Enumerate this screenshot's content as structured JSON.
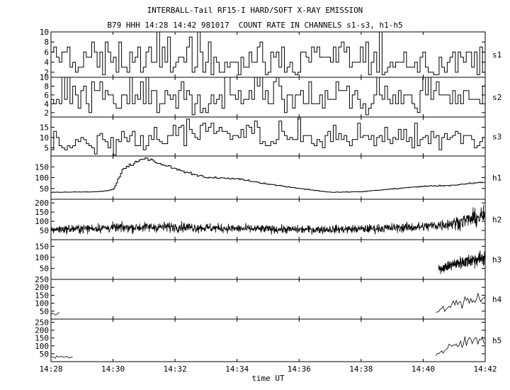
{
  "chart_data": {
    "type": "line",
    "title": "INTERBALL-Tail RF15-I HARD/SOFT X-RAY EMISSION",
    "subtitle": "B79 HHH 14:28 14:42 981017  COUNT RATE IN CHANNELS s1-s3, h1-h5",
    "xlabel": "time UT",
    "x_ticks": [
      "14:28",
      "14:30",
      "14:32",
      "14:34",
      "14:36",
      "14:38",
      "14:40",
      "14:42"
    ],
    "xlim": [
      "14:28",
      "14:42"
    ],
    "grid": false,
    "panels": [
      {
        "name": "s1",
        "ylim": [
          1,
          10
        ],
        "y_ticks": [
          "2",
          "4",
          "6",
          "8",
          "10"
        ],
        "profile": {
          "time": [
            "14:28",
            "14:32",
            "14:36",
            "14:40",
            "14:42"
          ],
          "level": [
            4,
            4.6,
            4.4,
            4.5,
            4.6
          ]
        }
      },
      {
        "name": "s2",
        "ylim": [
          1,
          10
        ],
        "y_ticks": [
          "2",
          "4",
          "6",
          "8",
          "10"
        ],
        "profile": {
          "time": [
            "14:28",
            "14:32",
            "14:36",
            "14:40",
            "14:42"
          ],
          "level": [
            5.5,
            6,
            5.8,
            5.8,
            6
          ]
        }
      },
      {
        "name": "s3",
        "ylim": [
          1,
          20
        ],
        "y_ticks": [
          "5",
          "10",
          "15"
        ],
        "profile": {
          "time": [
            "14:28",
            "14:30",
            "14:33",
            "14:35",
            "14:38",
            "14:42"
          ],
          "level": [
            7,
            8,
            12,
            11,
            10,
            9
          ]
        }
      },
      {
        "name": "h1",
        "ylim": [
          0,
          200
        ],
        "y_ticks": [
          "50",
          "100",
          "150"
        ],
        "profile": {
          "time": [
            "14:28",
            "14:29.5",
            "14:30",
            "14:30.3",
            "14:31",
            "14:32",
            "14:33",
            "14:34",
            "14:35",
            "14:36",
            "14:37",
            "14:38",
            "14:39",
            "14:40",
            "14:41",
            "14:42"
          ],
          "level": [
            32,
            35,
            45,
            140,
            190,
            140,
            100,
            95,
            70,
            50,
            32,
            35,
            48,
            60,
            65,
            80
          ]
        }
      },
      {
        "name": "h2",
        "ylim": [
          0,
          220
        ],
        "y_ticks": [
          "50",
          "100",
          "150",
          "200"
        ],
        "profile": {
          "time": [
            "14:28",
            "14:30",
            "14:32",
            "14:34",
            "14:36",
            "14:38",
            "14:40",
            "14:41",
            "14:42"
          ],
          "level": [
            55,
            65,
            70,
            60,
            55,
            58,
            70,
            90,
            130
          ]
        }
      },
      {
        "name": "h3",
        "ylim": [
          0,
          180
        ],
        "y_ticks": [
          "50",
          "100",
          "150"
        ],
        "profile": {
          "time": [
            "14:40.5",
            "14:41",
            "14:42"
          ],
          "level": [
            45,
            70,
            100
          ]
        }
      },
      {
        "name": "h4",
        "ylim": [
          0,
          250
        ],
        "y_ticks": [
          "50",
          "100",
          "150",
          "200",
          "250"
        ],
        "profile": {
          "time": [
            "14:28",
            "14:28.3",
            "14:40.4",
            "14:41",
            "14:42"
          ],
          "level": [
            30,
            30,
            45,
            90,
            150
          ]
        }
      },
      {
        "name": "h5",
        "ylim": [
          0,
          270
        ],
        "y_ticks": [
          "50",
          "100",
          "150",
          "200",
          "250"
        ],
        "profile": {
          "time": [
            "14:28",
            "14:28.7",
            "14:40.4",
            "14:41",
            "14:42"
          ],
          "level": [
            30,
            30,
            40,
            100,
            160
          ]
        }
      }
    ]
  }
}
